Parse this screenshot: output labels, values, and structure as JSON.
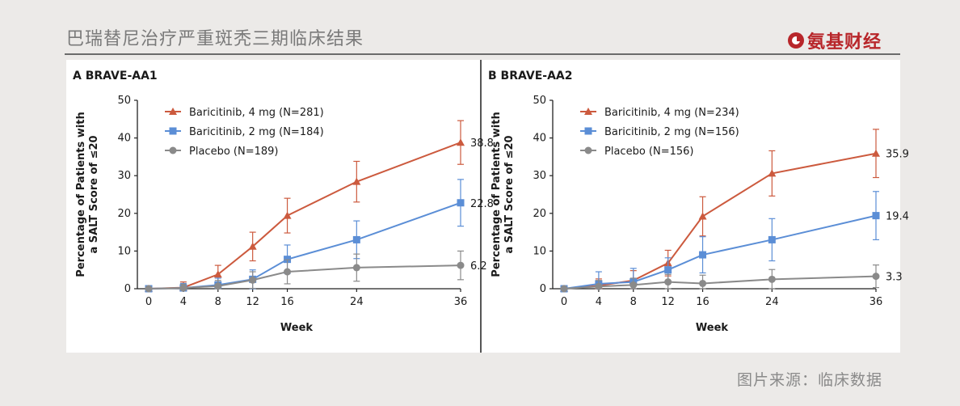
{
  "page": {
    "title": "巴瑞替尼治疗严重斑秃三期临床结果",
    "brand": "氨基财经",
    "source": "图片来源：临床数据"
  },
  "colors": {
    "baricitinib_4mg": "#cc5a3e",
    "baricitinib_2mg": "#5b8ed6",
    "placebo": "#8a8a8a",
    "brand": "#b8262a"
  },
  "chart_data": [
    {
      "type": "line",
      "panel_letter": "A",
      "title": "BRAVE-AA1",
      "xlabel": "Week",
      "ylabel": [
        "Percentage of Patients with",
        "a SALT Score of ≤20"
      ],
      "x": [
        0,
        4,
        8,
        12,
        16,
        24,
        36
      ],
      "xticks": [
        0,
        4,
        8,
        12,
        16,
        24,
        36
      ],
      "yticks": [
        0,
        10,
        20,
        30,
        40,
        50
      ],
      "ylim": [
        0,
        50
      ],
      "xlim": [
        0,
        36
      ],
      "series": [
        {
          "name": "Baricitinib, 4 mg (N=281)",
          "color_key": "baricitinib_4mg",
          "marker": "triangle",
          "values": [
            0,
            0.3,
            3.8,
            11.2,
            19.4,
            28.4,
            38.8
          ],
          "err": [
            0,
            1.5,
            2.4,
            3.8,
            4.6,
            5.4,
            5.8
          ],
          "end_label": "38.8"
        },
        {
          "name": "Baricitinib, 2 mg (N=184)",
          "color_key": "baricitinib_2mg",
          "marker": "square",
          "values": [
            0,
            0.2,
            1.0,
            2.5,
            7.8,
            13.0,
            22.8
          ],
          "err": [
            0,
            1.2,
            1.8,
            2.5,
            3.8,
            5.0,
            6.2
          ],
          "end_label": "22.8"
        },
        {
          "name": "Placebo (N=189)",
          "color_key": "placebo",
          "marker": "circle",
          "values": [
            0,
            0.2,
            0.7,
            2.3,
            4.5,
            5.6,
            6.2
          ],
          "err": [
            0,
            1.0,
            1.5,
            2.2,
            3.2,
            3.6,
            3.8
          ],
          "end_label": "6.2"
        }
      ]
    },
    {
      "type": "line",
      "panel_letter": "B",
      "title": "BRAVE-AA2",
      "xlabel": "Week",
      "ylabel": [
        "Percentage of Patients with",
        "a SALT Score of ≤20"
      ],
      "x": [
        0,
        4,
        8,
        12,
        16,
        24,
        36
      ],
      "xticks": [
        0,
        4,
        8,
        12,
        16,
        24,
        36
      ],
      "yticks": [
        0,
        10,
        20,
        30,
        40,
        50
      ],
      "ylim": [
        0,
        50
      ],
      "xlim": [
        0,
        36
      ],
      "series": [
        {
          "name": "Baricitinib, 4 mg (N=234)",
          "color_key": "baricitinib_4mg",
          "marker": "triangle",
          "values": [
            0,
            0.8,
            2.2,
            6.8,
            19.2,
            30.6,
            35.9
          ],
          "err": [
            0,
            1.8,
            2.6,
            3.4,
            5.2,
            6.0,
            6.4
          ],
          "end_label": "35.9"
        },
        {
          "name": "Baricitinib, 2 mg (N=156)",
          "color_key": "baricitinib_2mg",
          "marker": "square",
          "values": [
            0,
            1.3,
            1.8,
            5.0,
            9.0,
            13.0,
            19.4
          ],
          "err": [
            0,
            3.2,
            3.6,
            3.2,
            4.8,
            5.6,
            6.4
          ],
          "end_label": "19.4"
        },
        {
          "name": "Placebo (N=156)",
          "color_key": "placebo",
          "marker": "circle",
          "values": [
            0,
            0.6,
            1.0,
            1.8,
            1.4,
            2.5,
            3.3
          ],
          "err": [
            0,
            1.6,
            1.8,
            2.0,
            2.2,
            2.6,
            3.0
          ],
          "end_label": "3.3"
        }
      ]
    }
  ]
}
